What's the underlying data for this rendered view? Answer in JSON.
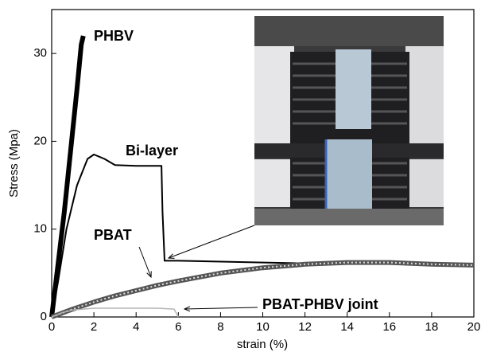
{
  "chart_data": {
    "type": "line",
    "xlabel": "strain (%)",
    "ylabel": "Stress (Mpa)",
    "xlim": [
      0,
      20
    ],
    "ylim": [
      0,
      35
    ],
    "xticks": [
      0,
      2,
      4,
      6,
      8,
      10,
      12,
      14,
      16,
      18,
      20
    ],
    "yticks": [
      0,
      10,
      20,
      30
    ],
    "series": [
      {
        "name": "PHBV",
        "color": "#000000",
        "x": [
          0,
          0.3,
          0.6,
          0.9,
          1.2,
          1.4,
          1.5
        ],
        "values": [
          0,
          6,
          12,
          19,
          26,
          31,
          32
        ]
      },
      {
        "name": "Bi-layer",
        "color": "#000000",
        "x": [
          0,
          0.3,
          0.7,
          1.2,
          1.7,
          2,
          2.5,
          3,
          4,
          5.2,
          5.25,
          5.35,
          6,
          8,
          10,
          12,
          14,
          16,
          18,
          20
        ],
        "values": [
          0,
          4,
          10,
          15,
          18,
          18.5,
          18,
          17.3,
          17.2,
          17.2,
          12,
          6.4,
          6.4,
          6.3,
          6.2,
          6.1,
          6.2,
          6.2,
          6,
          5.9
        ]
      },
      {
        "name": "PBAT",
        "color": "#555555",
        "x": [
          0,
          1,
          2,
          3,
          4,
          5,
          6,
          8,
          10,
          12,
          14,
          16,
          18,
          20
        ],
        "values": [
          0,
          0.9,
          1.7,
          2.4,
          3,
          3.6,
          4.1,
          5,
          5.6,
          6,
          6.2,
          6.2,
          6,
          5.9
        ]
      },
      {
        "name": "PBAT-PHBV joint",
        "color": "#b5b5b5",
        "x": [
          0,
          0.5,
          1,
          2,
          3,
          4,
          5,
          5.8,
          6
        ],
        "values": [
          0,
          0.5,
          0.8,
          1,
          1,
          1,
          1,
          0.9,
          0
        ]
      }
    ]
  }
}
